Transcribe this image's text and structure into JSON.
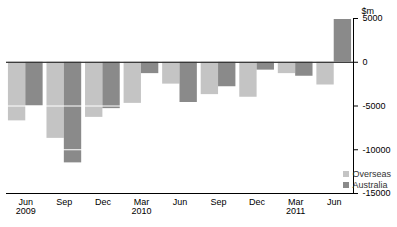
{
  "chart_data": {
    "type": "bar",
    "y_label": "$m",
    "categories": [
      "Jun\n2009",
      "Sep",
      "Dec",
      "Mar\n2010",
      "Jun",
      "Sep",
      "Dec",
      "Mar\n2011",
      "Jun"
    ],
    "series": [
      {
        "name": "Overseas",
        "color": "#c4c4c4",
        "values": [
          -6700,
          -8700,
          -6300,
          -4700,
          -2500,
          -3700,
          -4000,
          -1300,
          -2600
        ]
      },
      {
        "name": "Australia",
        "color": "#8a8a8a",
        "values": [
          -5000,
          -11500,
          -5300,
          -1300,
          -4600,
          -2800,
          -900,
          -1600,
          4900
        ]
      }
    ],
    "ylim": [
      -15000,
      5000
    ],
    "yticks": [
      -15000,
      -10000,
      -5000,
      0,
      5000
    ],
    "grid": true,
    "legend": "lower right"
  }
}
